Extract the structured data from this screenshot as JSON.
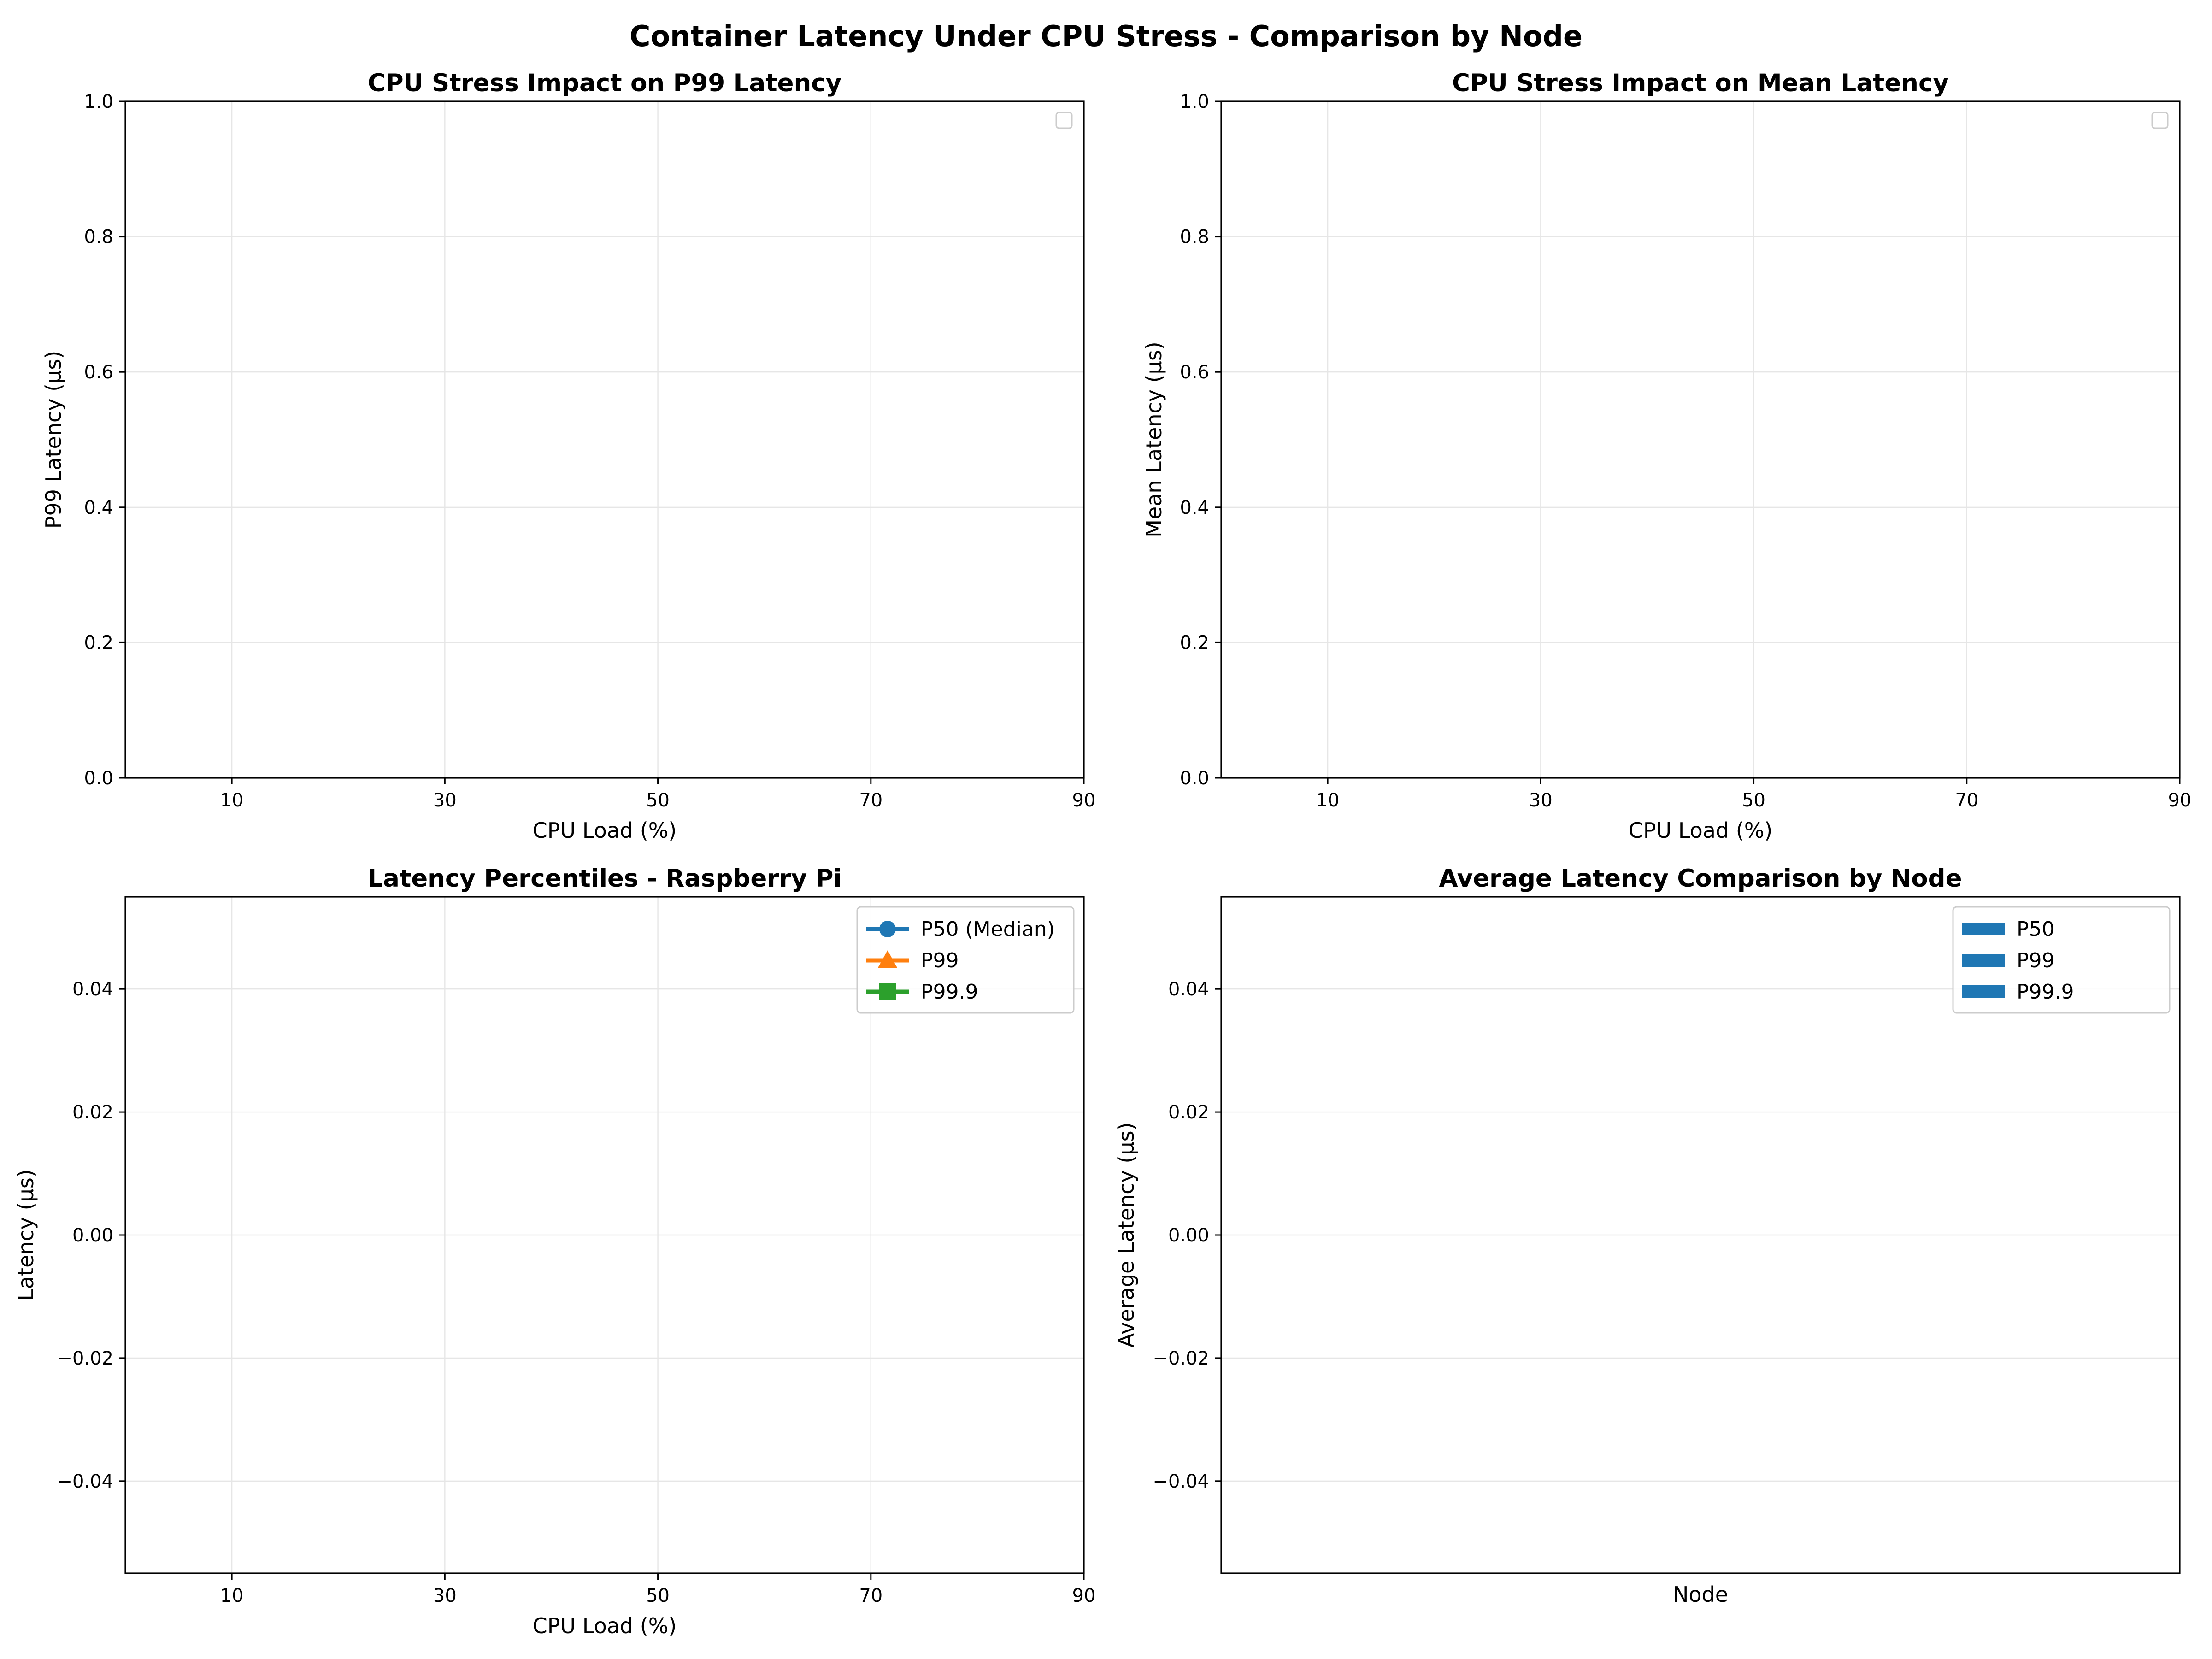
{
  "figure": {
    "suptitle": "Container Latency Under CPU Stress - Comparison by Node"
  },
  "chart_data": [
    {
      "type": "line",
      "title": "CPU Stress Impact on P99 Latency",
      "xlabel": "CPU Load (%)",
      "ylabel": "P99 Latency (µs)",
      "xlim": [
        0,
        90
      ],
      "ylim": [
        0.0,
        1.0
      ],
      "xticks": [
        10,
        30,
        50,
        70,
        90
      ],
      "xtick_labels": [
        "10",
        "30",
        "50",
        "70",
        "90"
      ],
      "yticks": [
        0.0,
        0.2,
        0.4,
        0.6,
        0.8,
        1.0
      ],
      "ytick_labels": [
        "0.0",
        "0.2",
        "0.4",
        "0.6",
        "0.8",
        "1.0"
      ],
      "grid": true,
      "legend": {
        "position": "upper-right",
        "entries": []
      },
      "series": []
    },
    {
      "type": "line",
      "title": "CPU Stress Impact on Mean Latency",
      "xlabel": "CPU Load (%)",
      "ylabel": "Mean Latency (µs)",
      "xlim": [
        0,
        90
      ],
      "ylim": [
        0.0,
        1.0
      ],
      "xticks": [
        10,
        30,
        50,
        70,
        90
      ],
      "xtick_labels": [
        "10",
        "30",
        "50",
        "70",
        "90"
      ],
      "yticks": [
        0.0,
        0.2,
        0.4,
        0.6,
        0.8,
        1.0
      ],
      "ytick_labels": [
        "0.0",
        "0.2",
        "0.4",
        "0.6",
        "0.8",
        "1.0"
      ],
      "grid": true,
      "legend": {
        "position": "upper-right",
        "entries": []
      },
      "series": []
    },
    {
      "type": "line",
      "title": "Latency Percentiles - Raspberry Pi",
      "xlabel": "CPU Load (%)",
      "ylabel": "Latency (µs)",
      "xlim": [
        0,
        90
      ],
      "ylim": [
        -0.055,
        0.055
      ],
      "xticks": [
        10,
        30,
        50,
        70,
        90
      ],
      "xtick_labels": [
        "10",
        "30",
        "50",
        "70",
        "90"
      ],
      "yticks": [
        -0.04,
        -0.02,
        0.0,
        0.02,
        0.04
      ],
      "ytick_labels": [
        "−0.04",
        "−0.02",
        "0.00",
        "0.02",
        "0.04"
      ],
      "grid": true,
      "legend": {
        "position": "upper-right",
        "entries": [
          {
            "label": "P50 (Median)",
            "color": "#1f77b4",
            "marker": "circle"
          },
          {
            "label": "P99",
            "color": "#ff7f0e",
            "marker": "triangle"
          },
          {
            "label": "P99.9",
            "color": "#2ca02c",
            "marker": "square"
          }
        ]
      },
      "series": [
        {
          "name": "P50 (Median)",
          "x": [],
          "y": []
        },
        {
          "name": "P99",
          "x": [],
          "y": []
        },
        {
          "name": "P99.9",
          "x": [],
          "y": []
        }
      ]
    },
    {
      "type": "bar",
      "title": "Average Latency Comparison by Node",
      "xlabel": "Node",
      "ylabel": "Average Latency (µs)",
      "ylim": [
        -0.055,
        0.055
      ],
      "xticks": [],
      "xtick_labels": [],
      "yticks": [
        -0.04,
        -0.02,
        0.0,
        0.02,
        0.04
      ],
      "ytick_labels": [
        "−0.04",
        "−0.02",
        "0.00",
        "0.02",
        "0.04"
      ],
      "grid": true,
      "categories": [],
      "legend": {
        "position": "upper-right",
        "entries": [
          {
            "label": "P50",
            "color": "#1f77b4",
            "marker": "patch"
          },
          {
            "label": "P99",
            "color": "#1f77b4",
            "marker": "patch"
          },
          {
            "label": "P99.9",
            "color": "#1f77b4",
            "marker": "patch"
          }
        ]
      },
      "series": [
        {
          "name": "P50",
          "values": []
        },
        {
          "name": "P99",
          "values": []
        },
        {
          "name": "P99.9",
          "values": []
        }
      ]
    }
  ]
}
